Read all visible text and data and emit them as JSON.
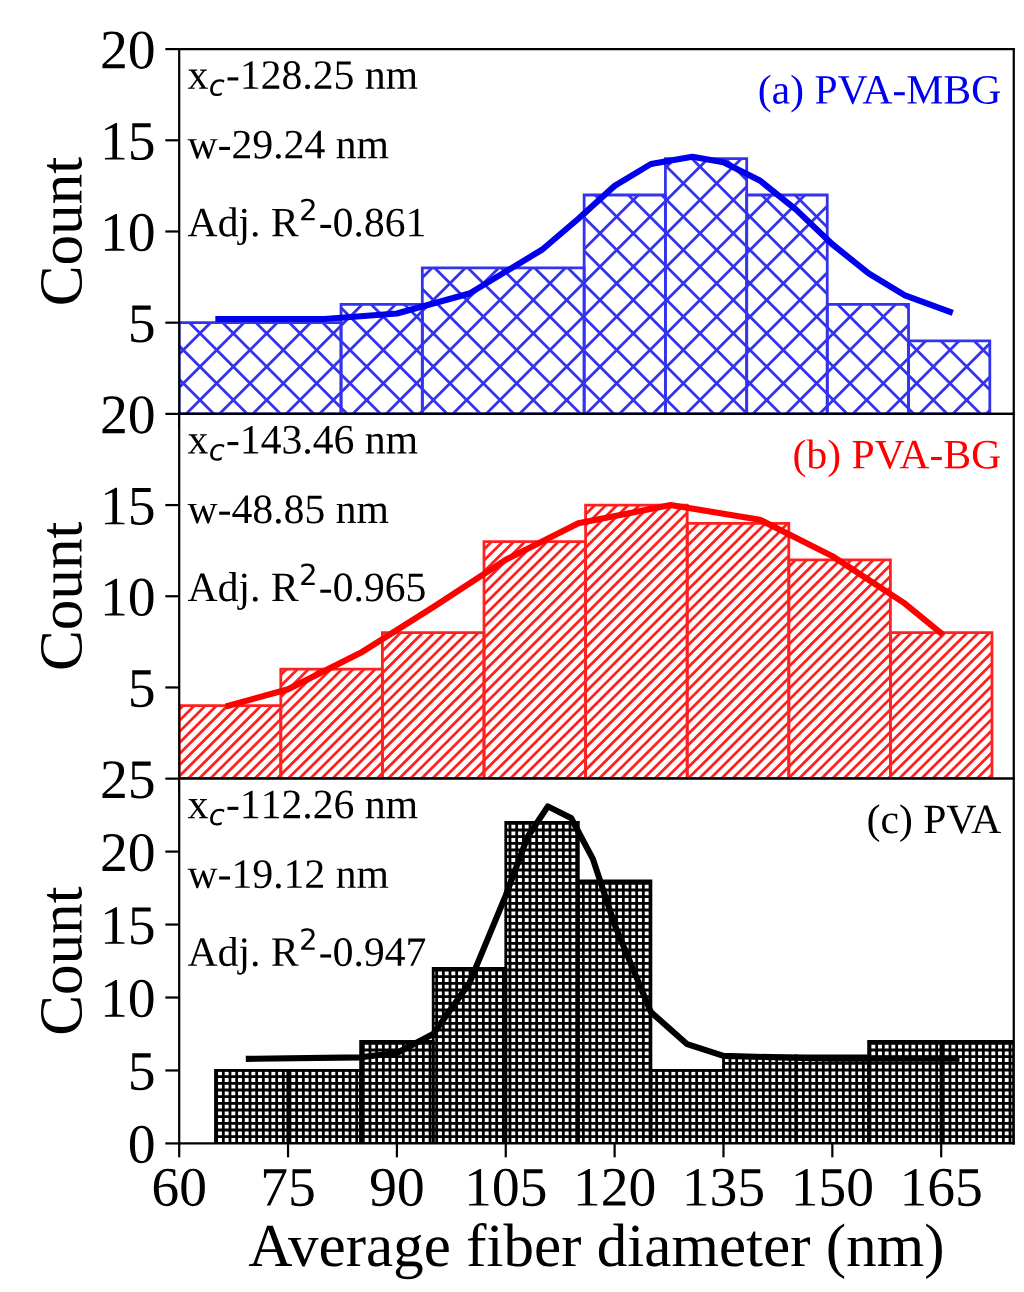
{
  "chart_data": [
    {
      "type": "histogram",
      "title": "(a) PVA-MBG",
      "ylabel": "Count",
      "xlim": [
        60,
        175
      ],
      "ylim": [
        0,
        20
      ],
      "xticks": [
        60,
        75,
        90,
        105,
        120,
        135,
        150,
        165
      ],
      "yticks": [
        5,
        10,
        15,
        20
      ],
      "tick_labels": "y",
      "grid": false,
      "legend": false,
      "annotations": [
        "x$_{c}$-128.25 nm",
        "w-29.24 nm",
        "Adj. R$^{2}$-0.861"
      ],
      "series": [
        {
          "color": "#3333ee",
          "bins": [
            60,
            82.3,
            93.5,
            115.8,
            127,
            138.2,
            149.3,
            160.5,
            171.7
          ],
          "values": [
            5,
            6,
            8,
            12,
            14,
            12,
            6,
            4
          ]
        },
        {
          "type": "line",
          "color": "#0000ee",
          "x": [
            65.4,
            80,
            90,
            100,
            110,
            115,
            120,
            125,
            130.7,
            135,
            140,
            145,
            150,
            155,
            160,
            166.2
          ],
          "values": [
            5.2,
            5.2,
            5.5,
            6.6,
            9,
            10.7,
            12.5,
            13.7,
            14.1,
            13.8,
            12.8,
            11.2,
            9.3,
            7.7,
            6.5,
            5.6
          ]
        }
      ]
    },
    {
      "type": "histogram",
      "title": "(b) PVA-BG",
      "ylabel": "Count",
      "xlim": [
        60,
        175
      ],
      "ylim": [
        0,
        20
      ],
      "xticks": [
        60,
        75,
        90,
        105,
        120,
        135,
        150,
        165
      ],
      "yticks": [
        5,
        10,
        15,
        20
      ],
      "tick_labels": "y",
      "grid": false,
      "legend": false,
      "annotations": [
        "x$_{c}$-143.46 nm",
        "w-48.85 nm",
        "Adj. R$^{2}$-0.965"
      ],
      "series": [
        {
          "color": "#ff2020",
          "bins": [
            60,
            74,
            88,
            102,
            116,
            130,
            144,
            158,
            172
          ],
          "values": [
            4,
            6,
            8,
            13,
            15,
            14,
            12,
            8
          ]
        },
        {
          "type": "line",
          "color": "#ff0000",
          "x": [
            66.8,
            75,
            85,
            95,
            105,
            115,
            127.7,
            140,
            150,
            160,
            164.9
          ],
          "values": [
            4,
            4.9,
            6.9,
            9.4,
            12,
            14,
            15,
            14.2,
            12.2,
            9.6,
            8
          ]
        }
      ]
    },
    {
      "type": "histogram",
      "title": "(c) PVA",
      "ylabel": "Count",
      "xlabel": "Average fiber diameter (nm)",
      "xlim": [
        60,
        175
      ],
      "ylim": [
        0,
        25
      ],
      "xticks": [
        60,
        75,
        90,
        105,
        120,
        135,
        150,
        165
      ],
      "yticks": [
        0,
        5,
        10,
        15,
        20,
        25
      ],
      "grid": false,
      "legend": false,
      "annotations": [
        "x$_{c}$-112.26 nm",
        "w-19.12 nm",
        "Adj. R$^{2}$-0.947"
      ],
      "series": [
        {
          "color": "#000000",
          "bins": [
            65,
            75,
            85,
            95,
            105,
            115,
            125,
            135,
            145,
            155,
            165,
            175
          ],
          "values": [
            5,
            5,
            7,
            12,
            22,
            18,
            5,
            6,
            6,
            7,
            7
          ]
        },
        {
          "type": "line",
          "color": "#000000",
          "x": [
            69.6,
            85,
            90,
            95,
            100,
            105,
            108,
            110.8,
            114,
            117,
            120,
            125,
            130,
            135,
            150,
            167.1
          ],
          "values": [
            5.8,
            5.9,
            6.2,
            7.5,
            11,
            17,
            21,
            23.1,
            22.3,
            19.5,
            15,
            9,
            6.8,
            6,
            5.8,
            5.8
          ]
        }
      ]
    }
  ]
}
